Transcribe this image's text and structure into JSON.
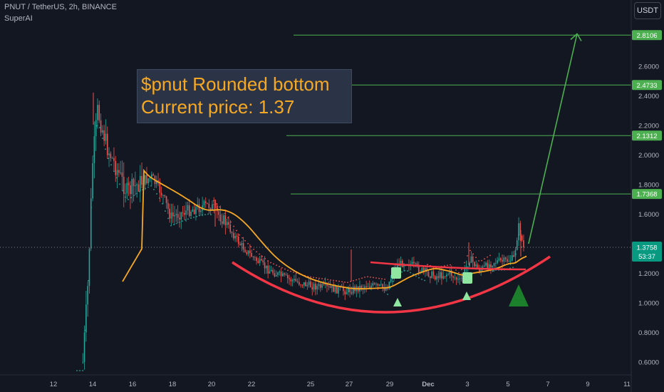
{
  "header": {
    "symbol_line": "PNUT / TetherUS, 2h, BINANCE",
    "indicator": "SuperAI",
    "currency_button": "USDT"
  },
  "annotation": {
    "line1": "$pnut Rounded bottom",
    "line2": "Current price: 1.37"
  },
  "countdown": "53:37",
  "colors": {
    "background": "#131722",
    "up": "#26a69a",
    "down": "#ef5350",
    "target_lines": "#4caf50",
    "ma": "#f7a823",
    "curve": "#f23645",
    "annotation_text": "#f7a823"
  },
  "chart_data": {
    "type": "candlestick",
    "title": "",
    "xlabel": "",
    "ylabel": "",
    "x_ticks": [
      "12",
      "14",
      "16",
      "18",
      "20",
      "22",
      "25",
      "27",
      "29",
      "Dec",
      "3",
      "5",
      "7",
      "9",
      "11"
    ],
    "y_ticks": [
      0.6,
      0.8,
      1.0,
      1.2,
      1.4,
      1.6,
      1.8,
      2.0,
      2.2,
      2.4,
      2.6,
      2.8
    ],
    "y_tick_labels": [
      "0.6000",
      "0.8000",
      "1.0000",
      "1.2000",
      "1.4000",
      "1.6000",
      "1.8000",
      "2.0000",
      "2.2000",
      "2.4000",
      "2.6000",
      "2.8000"
    ],
    "ylim": [
      0.55,
      2.9
    ],
    "current_price": 1.3758,
    "current_price_label": "1.3758",
    "target_levels": [
      {
        "value": 2.8106,
        "label": "2.8106"
      },
      {
        "value": 2.4733,
        "label": "2.4733"
      },
      {
        "value": 2.1312,
        "label": "2.1312"
      },
      {
        "value": 1.7368,
        "label": "1.7368"
      }
    ],
    "price_path": [
      {
        "x": "Nov 13 12:00",
        "y": 0.6
      },
      {
        "x": "Nov 13 18:00",
        "y": 1.1
      },
      {
        "x": "Nov 14 00:00",
        "y": 1.95
      },
      {
        "x": "Nov 14 06:00",
        "y": 2.3
      },
      {
        "x": "Nov 14 18:00",
        "y": 2.05
      },
      {
        "x": "Nov 15 06:00",
        "y": 1.9
      },
      {
        "x": "Nov 15 18:00",
        "y": 1.75
      },
      {
        "x": "Nov 16 12:00",
        "y": 1.82
      },
      {
        "x": "Nov 17 00:00",
        "y": 1.85
      },
      {
        "x": "Nov 17 12:00",
        "y": 1.75
      },
      {
        "x": "Nov 18 00:00",
        "y": 1.58
      },
      {
        "x": "Nov 18 18:00",
        "y": 1.62
      },
      {
        "x": "Nov 19 12:00",
        "y": 1.65
      },
      {
        "x": "Nov 20 00:00",
        "y": 1.66
      },
      {
        "x": "Nov 20 18:00",
        "y": 1.55
      },
      {
        "x": "Nov 21 12:00",
        "y": 1.4
      },
      {
        "x": "Nov 22 06:00",
        "y": 1.3
      },
      {
        "x": "Nov 23 00:00",
        "y": 1.22
      },
      {
        "x": "Nov 24 00:00",
        "y": 1.16
      },
      {
        "x": "Nov 25 00:00",
        "y": 1.12
      },
      {
        "x": "Nov 26 00:00",
        "y": 1.1
      },
      {
        "x": "Nov 27 00:00",
        "y": 1.08
      },
      {
        "x": "Nov 28 00:00",
        "y": 1.12
      },
      {
        "x": "Nov 29 00:00",
        "y": 1.1
      },
      {
        "x": "Nov 29 12:00",
        "y": 1.25
      },
      {
        "x": "Nov 30 00:00",
        "y": 1.28
      },
      {
        "x": "Nov 30 18:00",
        "y": 1.22
      },
      {
        "x": "Dec 1 12:00",
        "y": 1.18
      },
      {
        "x": "Dec 2 06:00",
        "y": 1.2
      },
      {
        "x": "Dec 2 18:00",
        "y": 1.14
      },
      {
        "x": "Dec 3 06:00",
        "y": 1.3
      },
      {
        "x": "Dec 3 18:00",
        "y": 1.22
      },
      {
        "x": "Dec 4 12:00",
        "y": 1.28
      },
      {
        "x": "Dec 5 00:00",
        "y": 1.28
      },
      {
        "x": "Dec 5 12:00",
        "y": 1.3
      },
      {
        "x": "Dec 5 18:00",
        "y": 1.52
      },
      {
        "x": "Dec 6 00:00",
        "y": 1.37
      }
    ],
    "projection": {
      "from": {
        "x": "Dec 6 06:00",
        "y": 1.4
      },
      "to": {
        "x": "Dec 8 00:00",
        "y": 2.8
      }
    },
    "legend": "none",
    "grid": false
  }
}
